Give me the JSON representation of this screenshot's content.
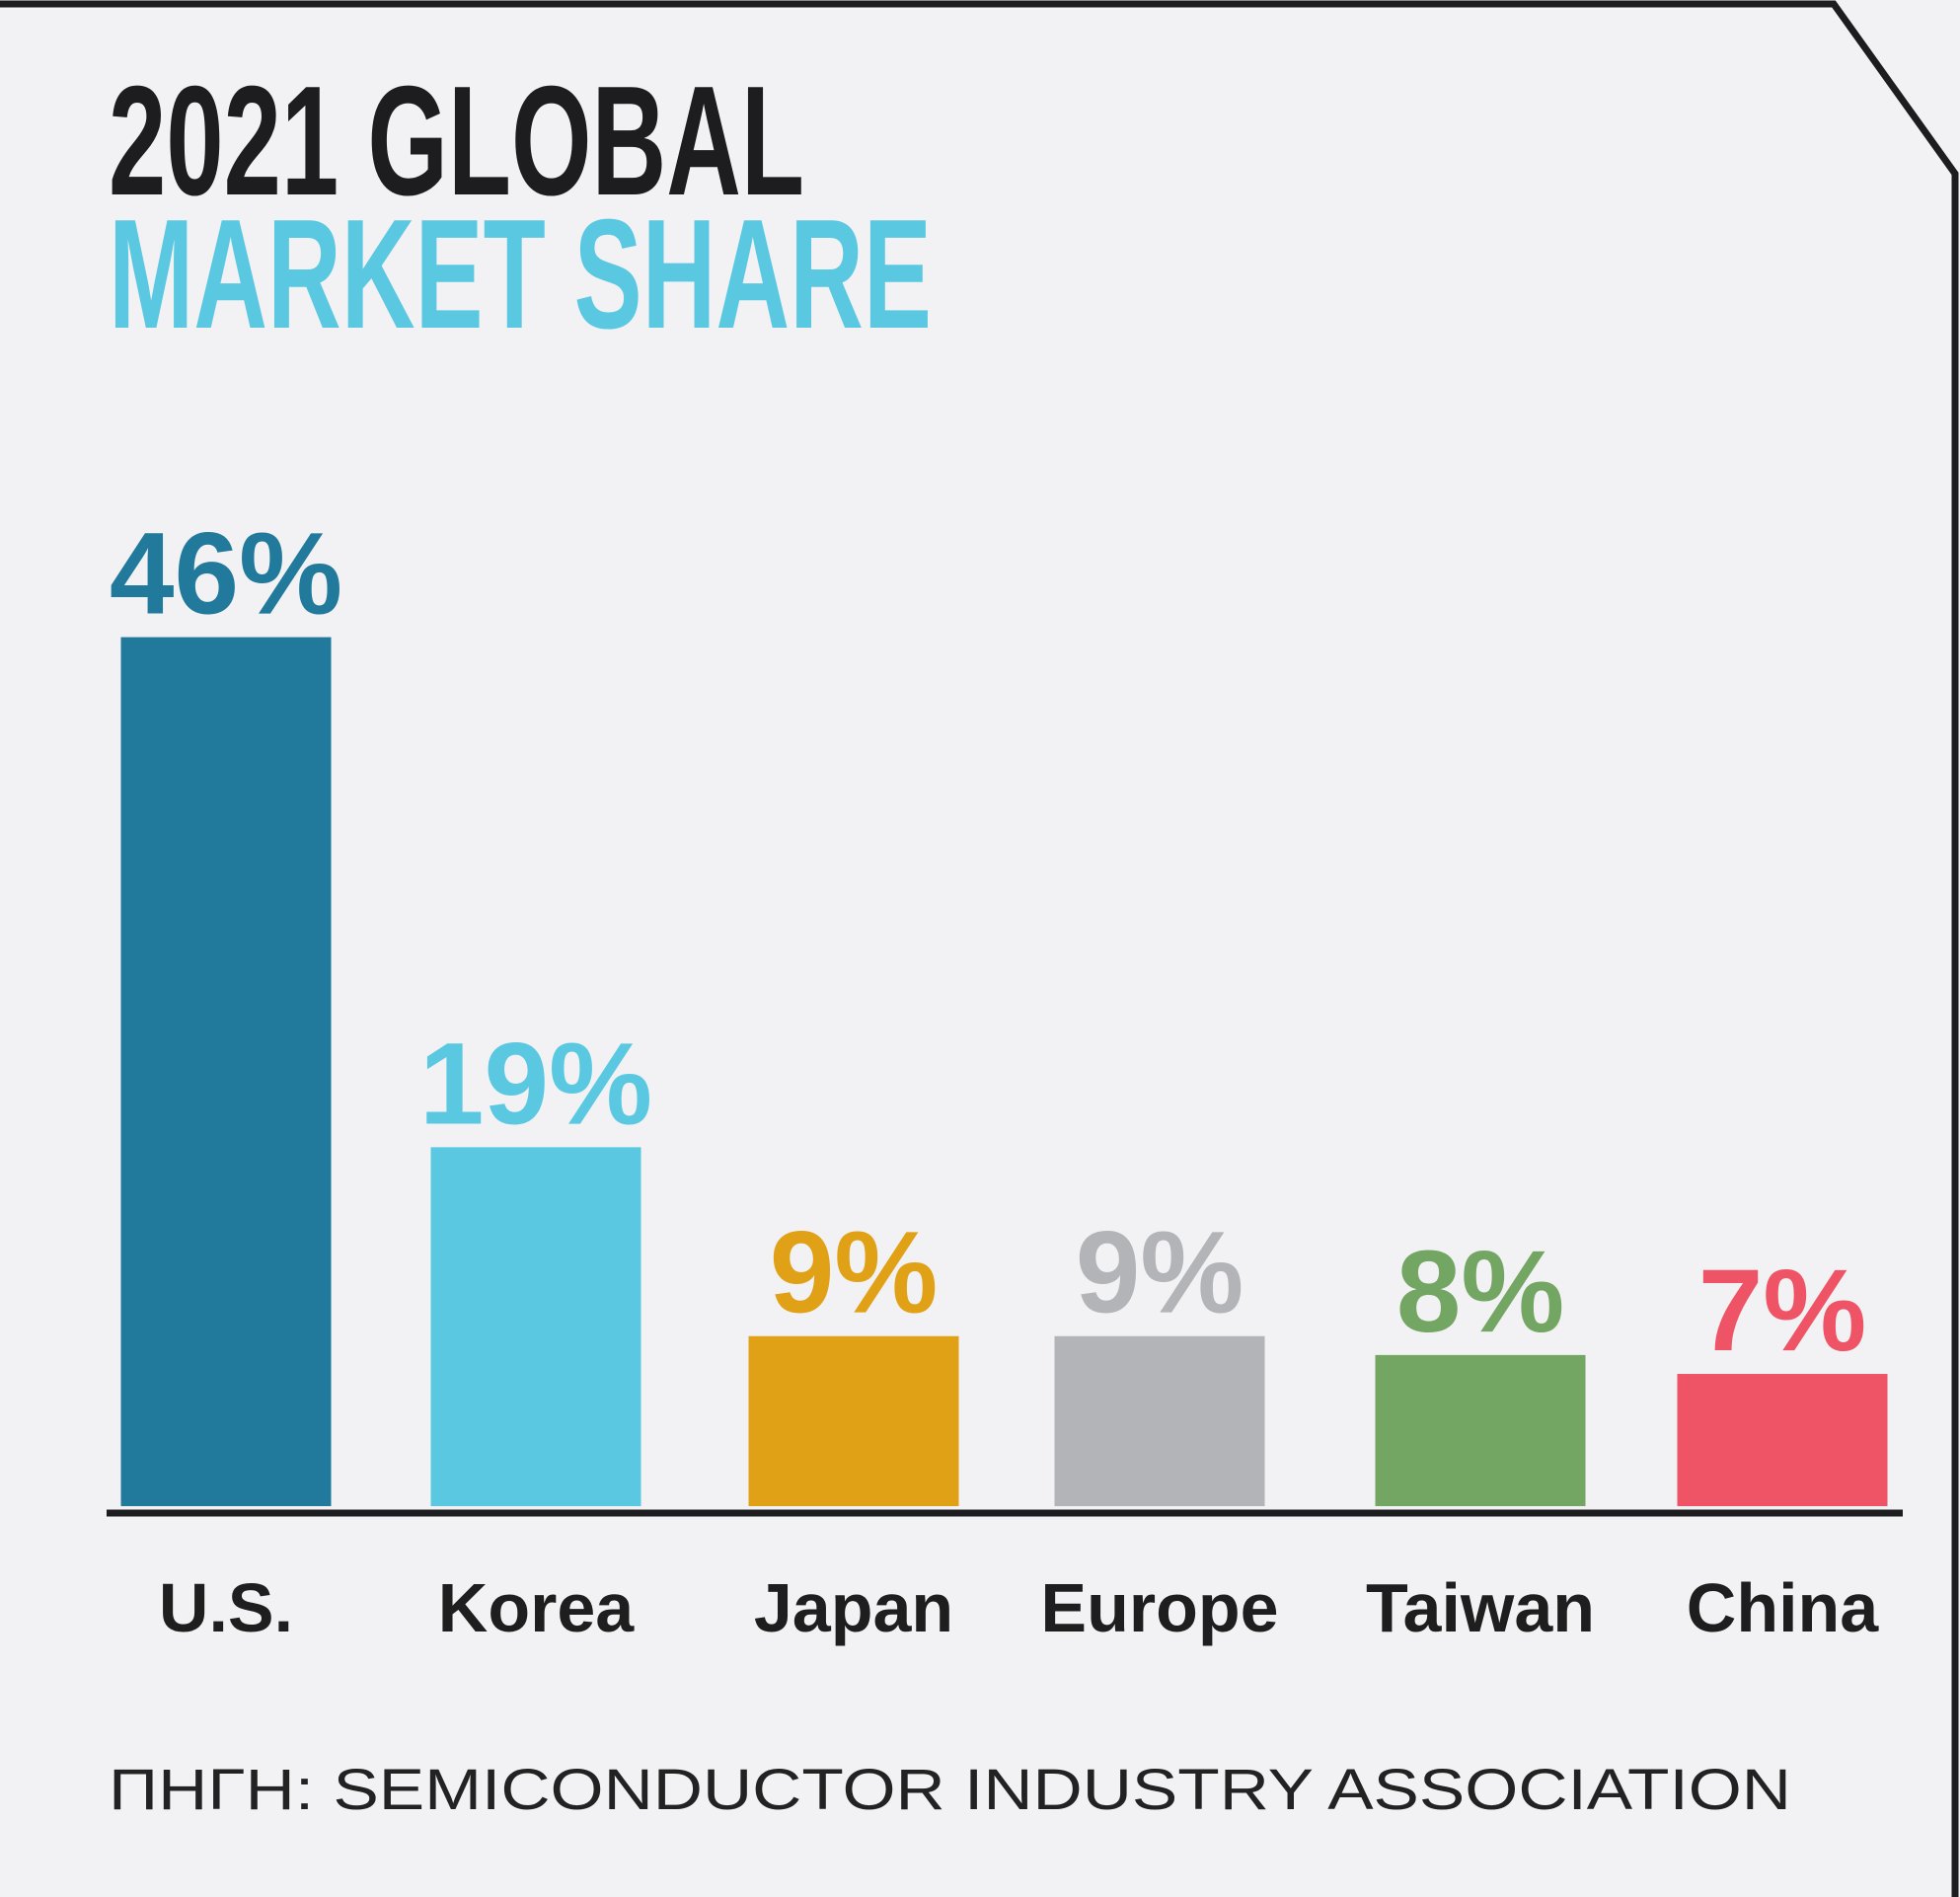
{
  "chart_data": {
    "type": "bar",
    "title": "2021 GLOBAL",
    "subtitle": "MARKET SHARE",
    "categories": [
      "U.S.",
      "Korea",
      "Japan",
      "Europe",
      "Taiwan",
      "China"
    ],
    "values": [
      46,
      19,
      9,
      9,
      8,
      7
    ],
    "value_labels": [
      "46%",
      "19%",
      "9%",
      "9%",
      "8%",
      "7%"
    ],
    "colors": [
      "#21799b",
      "#5bc8e2",
      "#e0a117",
      "#b3b4b7",
      "#74a663",
      "#ee5465"
    ],
    "ylim": [
      0,
      50
    ],
    "source": "ΠΗΓΗ: SEMICONDUCTOR INDUSTRY ASSOCIATION"
  }
}
